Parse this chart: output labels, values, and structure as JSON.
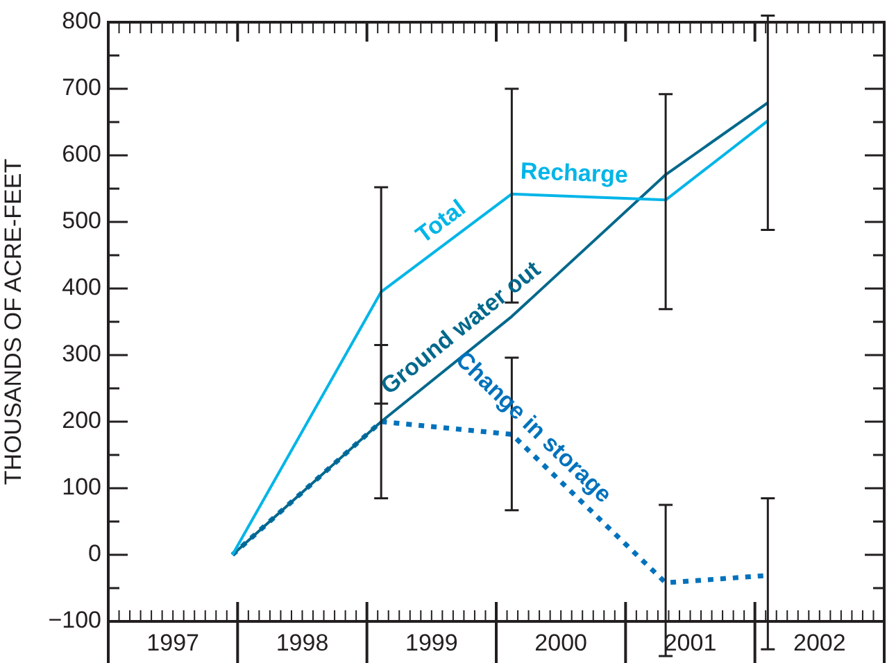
{
  "chart_data": {
    "type": "line",
    "ylabel": "THOUSANDS OF ACRE-FEET",
    "xlim": [
      1997,
      2003
    ],
    "xticks": [
      {
        "value": 1997.5,
        "label": "1997"
      },
      {
        "value": 1998.5,
        "label": "1998"
      },
      {
        "value": 1999.5,
        "label": "1999"
      },
      {
        "value": 2000.5,
        "label": "2000"
      },
      {
        "value": 2001.5,
        "label": "2001"
      },
      {
        "value": 2002.5,
        "label": "2002"
      }
    ],
    "ylim": [
      -100,
      800
    ],
    "yticks": [
      {
        "value": -100,
        "label": "−100"
      },
      {
        "value": -50,
        "label": null
      },
      0,
      {
        "value": 50,
        "label": null
      },
      100,
      {
        "value": 150,
        "label": null
      },
      200,
      {
        "value": 250,
        "label": null
      },
      300,
      {
        "value": 350,
        "label": null
      },
      400,
      {
        "value": 450,
        "label": null
      },
      500,
      {
        "value": 550,
        "label": null
      },
      600,
      {
        "value": 650,
        "label": null
      },
      700,
      {
        "value": 750,
        "label": null
      },
      800
    ],
    "grid": false,
    "legend": false,
    "marker": "none",
    "x": [
      1997.96,
      1999.11,
      2000.12,
      2001.31,
      2002.1
    ],
    "series": [
      {
        "name": "Total Recharge",
        "color": "#00b5e8",
        "line_style": "solid",
        "values": [
          0,
          395,
          542,
          533,
          652
        ],
        "errors": [
          null,
          [
            227,
            552
          ],
          [
            379,
            700
          ],
          [
            369,
            692
          ],
          [
            488,
            810
          ]
        ]
      },
      {
        "name": "Ground water out",
        "color": "#00688c",
        "line_style": "solid",
        "values": [
          0,
          200,
          358,
          571,
          679
        ]
      },
      {
        "name": "Change in storage",
        "color": "#0072bc",
        "line_style": "dotted",
        "values": [
          0,
          200,
          181,
          -42,
          -31
        ],
        "errors": [
          null,
          [
            85,
            315
          ],
          [
            67,
            296
          ],
          [
            -152,
            75
          ],
          [
            -142,
            85
          ]
        ]
      }
    ]
  }
}
